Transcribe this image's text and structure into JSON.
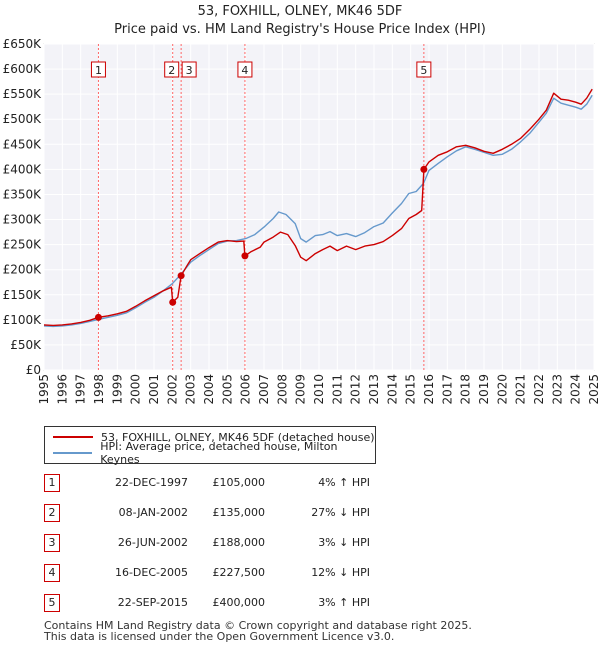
{
  "title": "53, FOXHILL, OLNEY, MK46 5DF",
  "subtitle": "Price paid vs. HM Land Registry's House Price Index (HPI)",
  "colors": {
    "property": "#cc0000",
    "hpi": "#6699cc",
    "marker": "#cc0000",
    "vline": "#ff6666"
  },
  "legend": [
    {
      "label": "53, FOXHILL, OLNEY, MK46 5DF (detached house)",
      "color": "#cc0000"
    },
    {
      "label": "HPI: Average price, detached house, Milton Keynes",
      "color": "#6699cc"
    }
  ],
  "transactions": [
    {
      "num": "1",
      "date": "22-DEC-1997",
      "price": "£105,000",
      "hpi": "4% ↑ HPI"
    },
    {
      "num": "2",
      "date": "08-JAN-2002",
      "price": "£135,000",
      "hpi": "27% ↓ HPI"
    },
    {
      "num": "3",
      "date": "26-JUN-2002",
      "price": "£188,000",
      "hpi": "3% ↓ HPI"
    },
    {
      "num": "4",
      "date": "16-DEC-2005",
      "price": "£227,500",
      "hpi": "12% ↓ HPI"
    },
    {
      "num": "5",
      "date": "22-SEP-2015",
      "price": "£400,000",
      "hpi": "3% ↑ HPI"
    }
  ],
  "footer": [
    "Contains HM Land Registry data © Crown copyright and database right 2025.",
    "This data is licensed under the Open Government Licence v3.0."
  ],
  "chart_data": {
    "type": "line",
    "title": "53, FOXHILL, OLNEY, MK46 5DF",
    "subtitle": "Price paid vs. HM Land Registry's House Price Index (HPI)",
    "xlabel": "",
    "ylabel": "",
    "xlim": [
      1995,
      2025
    ],
    "ylim": [
      0,
      650000
    ],
    "grid": true,
    "x_ticks": [
      "1995",
      "1996",
      "1997",
      "1998",
      "1999",
      "2000",
      "2001",
      "2002",
      "2003",
      "2004",
      "2005",
      "2006",
      "2007",
      "2008",
      "2009",
      "2010",
      "2011",
      "2012",
      "2013",
      "2014",
      "2015",
      "2016",
      "2017",
      "2018",
      "2019",
      "2020",
      "2021",
      "2022",
      "2023",
      "2024",
      "2025"
    ],
    "y_ticks": [
      {
        "value": 0,
        "label": "£0"
      },
      {
        "value": 50000,
        "label": "£50K"
      },
      {
        "value": 100000,
        "label": "£100K"
      },
      {
        "value": 150000,
        "label": "£150K"
      },
      {
        "value": 200000,
        "label": "£200K"
      },
      {
        "value": 250000,
        "label": "£250K"
      },
      {
        "value": 300000,
        "label": "£300K"
      },
      {
        "value": 350000,
        "label": "£350K"
      },
      {
        "value": 400000,
        "label": "£400K"
      },
      {
        "value": 450000,
        "label": "£450K"
      },
      {
        "value": 500000,
        "label": "£500K"
      },
      {
        "value": 550000,
        "label": "£550K"
      },
      {
        "value": 600000,
        "label": "£600K"
      },
      {
        "value": 650000,
        "label": "£650K"
      }
    ],
    "series": [
      {
        "name": "53, FOXHILL, OLNEY, MK46 5DF (detached house)",
        "color": "#cc0000",
        "points": [
          [
            1995.0,
            90000
          ],
          [
            1995.5,
            89000
          ],
          [
            1996.0,
            90000
          ],
          [
            1996.5,
            92000
          ],
          [
            1997.0,
            95000
          ],
          [
            1997.5,
            99000
          ],
          [
            1997.97,
            105000
          ],
          [
            1998.5,
            108000
          ],
          [
            1999.0,
            112000
          ],
          [
            1999.5,
            117000
          ],
          [
            2000.0,
            127000
          ],
          [
            2000.5,
            138000
          ],
          [
            2001.0,
            148000
          ],
          [
            2001.5,
            158000
          ],
          [
            2001.95,
            165000
          ],
          [
            2002.02,
            135000
          ],
          [
            2002.3,
            145000
          ],
          [
            2002.48,
            188000
          ],
          [
            2002.8,
            208000
          ],
          [
            2003.0,
            220000
          ],
          [
            2003.5,
            232000
          ],
          [
            2004.0,
            244000
          ],
          [
            2004.5,
            255000
          ],
          [
            2005.0,
            258000
          ],
          [
            2005.5,
            256000
          ],
          [
            2005.9,
            257000
          ],
          [
            2005.96,
            227500
          ],
          [
            2006.3,
            236000
          ],
          [
            2006.8,
            245000
          ],
          [
            2007.0,
            255000
          ],
          [
            2007.5,
            265000
          ],
          [
            2007.9,
            275000
          ],
          [
            2008.3,
            270000
          ],
          [
            2008.7,
            248000
          ],
          [
            2009.0,
            225000
          ],
          [
            2009.3,
            218000
          ],
          [
            2009.8,
            232000
          ],
          [
            2010.2,
            240000
          ],
          [
            2010.6,
            247000
          ],
          [
            2011.0,
            238000
          ],
          [
            2011.5,
            247000
          ],
          [
            2012.0,
            240000
          ],
          [
            2012.5,
            247000
          ],
          [
            2013.0,
            250000
          ],
          [
            2013.5,
            256000
          ],
          [
            2014.0,
            268000
          ],
          [
            2014.5,
            282000
          ],
          [
            2014.9,
            302000
          ],
          [
            2015.3,
            310000
          ],
          [
            2015.6,
            318000
          ],
          [
            2015.72,
            400000
          ],
          [
            2016.0,
            415000
          ],
          [
            2016.5,
            428000
          ],
          [
            2017.0,
            435000
          ],
          [
            2017.5,
            445000
          ],
          [
            2018.0,
            448000
          ],
          [
            2018.5,
            443000
          ],
          [
            2019.0,
            436000
          ],
          [
            2019.5,
            432000
          ],
          [
            2020.0,
            440000
          ],
          [
            2020.5,
            450000
          ],
          [
            2021.0,
            462000
          ],
          [
            2021.5,
            480000
          ],
          [
            2022.0,
            500000
          ],
          [
            2022.4,
            518000
          ],
          [
            2022.8,
            552000
          ],
          [
            2023.2,
            540000
          ],
          [
            2023.6,
            538000
          ],
          [
            2024.0,
            534000
          ],
          [
            2024.3,
            530000
          ],
          [
            2024.6,
            542000
          ],
          [
            2024.9,
            560000
          ]
        ]
      },
      {
        "name": "HPI: Average price, detached house, Milton Keynes",
        "color": "#6699cc",
        "points": [
          [
            1995.0,
            88000
          ],
          [
            1995.5,
            87000
          ],
          [
            1996.0,
            88000
          ],
          [
            1996.5,
            90000
          ],
          [
            1997.0,
            93000
          ],
          [
            1997.5,
            97000
          ],
          [
            1998.0,
            101000
          ],
          [
            1998.5,
            105000
          ],
          [
            1999.0,
            109000
          ],
          [
            1999.5,
            114000
          ],
          [
            2000.0,
            124000
          ],
          [
            2000.5,
            135000
          ],
          [
            2001.0,
            145000
          ],
          [
            2001.5,
            158000
          ],
          [
            2002.0,
            172000
          ],
          [
            2002.5,
            192000
          ],
          [
            2003.0,
            215000
          ],
          [
            2003.5,
            228000
          ],
          [
            2004.0,
            240000
          ],
          [
            2004.5,
            252000
          ],
          [
            2005.0,
            257000
          ],
          [
            2005.5,
            258000
          ],
          [
            2006.0,
            262000
          ],
          [
            2006.5,
            270000
          ],
          [
            2007.0,
            285000
          ],
          [
            2007.5,
            302000
          ],
          [
            2007.8,
            315000
          ],
          [
            2008.2,
            310000
          ],
          [
            2008.7,
            292000
          ],
          [
            2009.0,
            262000
          ],
          [
            2009.3,
            255000
          ],
          [
            2009.8,
            268000
          ],
          [
            2010.2,
            270000
          ],
          [
            2010.6,
            276000
          ],
          [
            2011.0,
            268000
          ],
          [
            2011.5,
            272000
          ],
          [
            2012.0,
            266000
          ],
          [
            2012.5,
            274000
          ],
          [
            2013.0,
            286000
          ],
          [
            2013.5,
            293000
          ],
          [
            2014.0,
            313000
          ],
          [
            2014.5,
            332000
          ],
          [
            2014.9,
            352000
          ],
          [
            2015.3,
            356000
          ],
          [
            2015.7,
            372000
          ],
          [
            2016.0,
            398000
          ],
          [
            2016.5,
            412000
          ],
          [
            2017.0,
            425000
          ],
          [
            2017.5,
            437000
          ],
          [
            2018.0,
            445000
          ],
          [
            2018.5,
            440000
          ],
          [
            2019.0,
            434000
          ],
          [
            2019.5,
            428000
          ],
          [
            2020.0,
            430000
          ],
          [
            2020.5,
            440000
          ],
          [
            2021.0,
            455000
          ],
          [
            2021.5,
            472000
          ],
          [
            2022.0,
            494000
          ],
          [
            2022.4,
            512000
          ],
          [
            2022.8,
            542000
          ],
          [
            2023.2,
            532000
          ],
          [
            2023.6,
            528000
          ],
          [
            2024.0,
            524000
          ],
          [
            2024.3,
            520000
          ],
          [
            2024.6,
            530000
          ],
          [
            2024.9,
            548000
          ]
        ]
      }
    ],
    "sales": [
      {
        "num": "1",
        "x": 1997.97,
        "y": 105000
      },
      {
        "num": "2",
        "x": 2002.02,
        "y": 135000
      },
      {
        "num": "3",
        "x": 2002.48,
        "y": 188000
      },
      {
        "num": "4",
        "x": 2005.96,
        "y": 227500
      },
      {
        "num": "5",
        "x": 2015.72,
        "y": 400000
      }
    ]
  }
}
